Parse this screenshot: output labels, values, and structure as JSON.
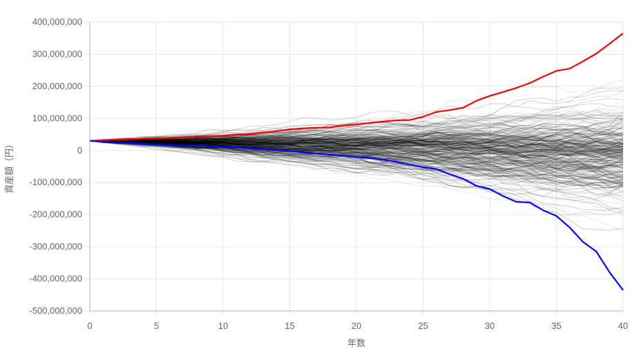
{
  "chart_data": {
    "type": "line",
    "xlabel": "年数",
    "ylabel": "資産額（円）",
    "xlim": [
      0,
      40
    ],
    "ylim": [
      -500000000,
      400000000
    ],
    "x_ticks": [
      0,
      5,
      10,
      15,
      20,
      25,
      30,
      35,
      40
    ],
    "y_ticks": [
      400000000,
      300000000,
      200000000,
      100000000,
      0,
      -100000000,
      -200000000,
      -300000000,
      -400000000,
      -500000000
    ],
    "y_tick_labels": [
      "400,000,000",
      "300,000,000",
      "200,000,000",
      "100,000,000",
      "0",
      "-100,000,000",
      "-200,000,000",
      "-300,000,000",
      "-400,000,000",
      "-500,000,000"
    ],
    "grid": true,
    "legend": "none",
    "colors": {
      "simulation": "#000000",
      "max_path": "#ff0000",
      "min_path": "#0000ff",
      "grid": "#e6e6e6",
      "axis": "#b3b3b3"
    },
    "initial_value": 30000000,
    "simulation_path_count": 300,
    "series": [
      {
        "color": "#ff0000",
        "x": [
          0,
          1,
          2,
          3,
          4,
          5,
          6,
          7,
          8,
          9,
          10,
          11,
          12,
          13,
          14,
          15,
          16,
          17,
          18,
          19,
          20,
          21,
          22,
          23,
          24,
          25,
          26,
          27,
          28,
          29,
          30,
          31,
          32,
          33,
          34,
          35,
          36,
          37,
          38,
          39,
          40
        ],
        "values": [
          30000000,
          32000000,
          34000000,
          35000000,
          37000000,
          38000000,
          39000000,
          41000000,
          42000000,
          44000000,
          46000000,
          49000000,
          51000000,
          56000000,
          60000000,
          66000000,
          69000000,
          71000000,
          72000000,
          78000000,
          81000000,
          86000000,
          90000000,
          94000000,
          95000000,
          105000000,
          120000000,
          126000000,
          133000000,
          155000000,
          170000000,
          182000000,
          195000000,
          210000000,
          230000000,
          248000000,
          255000000,
          278000000,
          302000000,
          333000000,
          365000000
        ]
      },
      {
        "color": "#0000ff",
        "x": [
          0,
          1,
          2,
          3,
          4,
          5,
          6,
          7,
          8,
          9,
          10,
          11,
          12,
          13,
          14,
          15,
          16,
          17,
          18,
          19,
          20,
          21,
          22,
          23,
          24,
          25,
          26,
          27,
          28,
          29,
          30,
          31,
          32,
          33,
          34,
          35,
          36,
          37,
          38,
          39,
          40
        ],
        "values": [
          30000000,
          27000000,
          25000000,
          23000000,
          21000000,
          19000000,
          18000000,
          16000000,
          15000000,
          13000000,
          12000000,
          10000000,
          7000000,
          4000000,
          1000000,
          -2000000,
          -5000000,
          -9000000,
          -13000000,
          -16000000,
          -20000000,
          -24000000,
          -28000000,
          -36000000,
          -44000000,
          -52000000,
          -58000000,
          -74000000,
          -88000000,
          -110000000,
          -120000000,
          -142000000,
          -160000000,
          -162000000,
          -186000000,
          -204000000,
          -240000000,
          -285000000,
          -315000000,
          -380000000,
          -435000000
        ]
      }
    ]
  }
}
